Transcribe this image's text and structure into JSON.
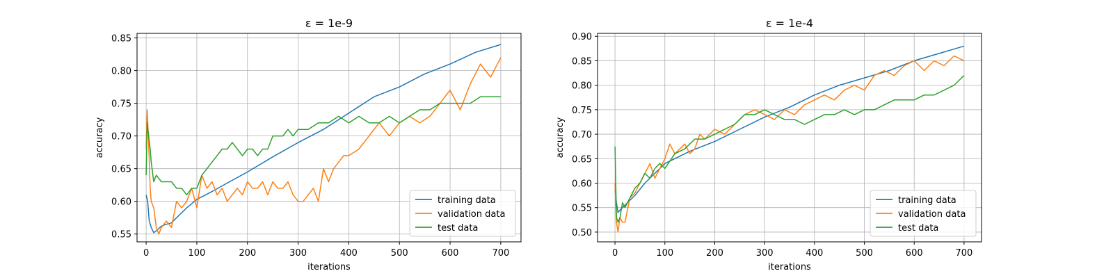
{
  "colors": {
    "training": "#1f77b4",
    "validation": "#ff7f0e",
    "test": "#2ca02c",
    "grid": "#b0b0b0"
  },
  "chart_data": [
    {
      "type": "line",
      "title": "ε = 1e-9",
      "xlabel": "iterations",
      "ylabel": "accuracy",
      "xlim": [
        -18,
        740
      ],
      "ylim": [
        0.538,
        0.857
      ],
      "xticks": [
        0,
        100,
        200,
        300,
        400,
        500,
        600,
        700
      ],
      "yticks": [
        0.55,
        0.6,
        0.65,
        0.7,
        0.75,
        0.8,
        0.85
      ],
      "ytick_labels": [
        "0.55",
        "0.60",
        "0.65",
        "0.70",
        "0.75",
        "0.80",
        "0.85"
      ],
      "grid": true,
      "legend_position": "lower-right",
      "series": [
        {
          "name": "training data",
          "color_key": "training",
          "x": [
            0,
            3,
            6,
            10,
            15,
            20,
            30,
            40,
            50,
            60,
            80,
            100,
            130,
            160,
            200,
            250,
            300,
            350,
            400,
            450,
            500,
            550,
            600,
            650,
            700
          ],
          "y": [
            0.61,
            0.6,
            0.57,
            0.56,
            0.552,
            0.555,
            0.562,
            0.565,
            0.567,
            0.575,
            0.59,
            0.603,
            0.615,
            0.628,
            0.645,
            0.668,
            0.69,
            0.71,
            0.735,
            0.76,
            0.775,
            0.795,
            0.81,
            0.828,
            0.84
          ]
        },
        {
          "name": "validation data",
          "color_key": "validation",
          "x": [
            0,
            2,
            5,
            8,
            10,
            15,
            20,
            25,
            30,
            40,
            50,
            60,
            70,
            80,
            90,
            100,
            110,
            120,
            130,
            140,
            150,
            160,
            170,
            180,
            190,
            200,
            210,
            220,
            230,
            240,
            250,
            260,
            270,
            280,
            290,
            300,
            310,
            320,
            330,
            340,
            350,
            360,
            370,
            380,
            390,
            400,
            420,
            440,
            460,
            480,
            500,
            520,
            540,
            560,
            580,
            600,
            620,
            640,
            660,
            680,
            700
          ],
          "y": [
            0.68,
            0.74,
            0.69,
            0.62,
            0.6,
            0.59,
            0.56,
            0.55,
            0.56,
            0.57,
            0.56,
            0.6,
            0.59,
            0.6,
            0.62,
            0.59,
            0.64,
            0.62,
            0.63,
            0.61,
            0.62,
            0.6,
            0.61,
            0.62,
            0.61,
            0.63,
            0.62,
            0.62,
            0.63,
            0.61,
            0.63,
            0.62,
            0.62,
            0.63,
            0.61,
            0.6,
            0.6,
            0.61,
            0.62,
            0.6,
            0.65,
            0.63,
            0.65,
            0.66,
            0.67,
            0.67,
            0.68,
            0.7,
            0.72,
            0.7,
            0.72,
            0.73,
            0.72,
            0.73,
            0.75,
            0.77,
            0.74,
            0.78,
            0.81,
            0.79,
            0.82
          ]
        },
        {
          "name": "test data",
          "color_key": "test",
          "x": [
            0,
            2,
            5,
            8,
            10,
            15,
            20,
            30,
            40,
            50,
            60,
            70,
            80,
            90,
            100,
            110,
            120,
            130,
            140,
            150,
            160,
            170,
            180,
            190,
            200,
            210,
            220,
            230,
            240,
            250,
            260,
            270,
            280,
            290,
            300,
            320,
            340,
            360,
            380,
            400,
            420,
            440,
            460,
            480,
            500,
            520,
            540,
            560,
            580,
            600,
            620,
            640,
            660,
            680,
            700
          ],
          "y": [
            0.64,
            0.72,
            0.7,
            0.68,
            0.66,
            0.63,
            0.64,
            0.63,
            0.63,
            0.63,
            0.62,
            0.62,
            0.61,
            0.62,
            0.62,
            0.64,
            0.65,
            0.66,
            0.67,
            0.68,
            0.68,
            0.69,
            0.68,
            0.67,
            0.68,
            0.68,
            0.67,
            0.68,
            0.68,
            0.7,
            0.7,
            0.7,
            0.71,
            0.7,
            0.71,
            0.71,
            0.72,
            0.72,
            0.73,
            0.72,
            0.73,
            0.72,
            0.72,
            0.73,
            0.72,
            0.73,
            0.74,
            0.74,
            0.75,
            0.75,
            0.75,
            0.75,
            0.76,
            0.76,
            0.76
          ]
        }
      ]
    },
    {
      "type": "line",
      "title": "ε = 1e-4",
      "xlabel": "iterations",
      "ylabel": "accuracy",
      "xlim": [
        -35,
        735
      ],
      "ylim": [
        0.48,
        0.906
      ],
      "xticks": [
        0,
        100,
        200,
        300,
        400,
        500,
        600,
        700
      ],
      "yticks": [
        0.5,
        0.55,
        0.6,
        0.65,
        0.7,
        0.75,
        0.8,
        0.85,
        0.9
      ],
      "ytick_labels": [
        "0.50",
        "0.55",
        "0.60",
        "0.65",
        "0.70",
        "0.75",
        "0.80",
        "0.85",
        "0.90"
      ],
      "grid": true,
      "legend_position": "lower-right",
      "series": [
        {
          "name": "training data",
          "color_key": "training",
          "x": [
            0,
            3,
            6,
            10,
            20,
            40,
            60,
            100,
            150,
            200,
            250,
            300,
            350,
            400,
            450,
            500,
            550,
            600,
            650,
            700
          ],
          "y": [
            0.585,
            0.56,
            0.54,
            0.545,
            0.555,
            0.575,
            0.6,
            0.64,
            0.665,
            0.685,
            0.71,
            0.735,
            0.755,
            0.78,
            0.8,
            0.815,
            0.83,
            0.85,
            0.865,
            0.88
          ]
        },
        {
          "name": "validation data",
          "color_key": "validation",
          "x": [
            0,
            3,
            6,
            10,
            15,
            20,
            30,
            40,
            50,
            60,
            70,
            80,
            90,
            100,
            110,
            120,
            130,
            140,
            150,
            160,
            170,
            180,
            190,
            200,
            220,
            240,
            260,
            280,
            300,
            320,
            340,
            360,
            380,
            400,
            420,
            440,
            460,
            480,
            500,
            520,
            540,
            560,
            580,
            600,
            620,
            640,
            660,
            680,
            700
          ],
          "y": [
            0.6,
            0.52,
            0.5,
            0.53,
            0.52,
            0.52,
            0.57,
            0.58,
            0.6,
            0.62,
            0.64,
            0.61,
            0.63,
            0.65,
            0.68,
            0.66,
            0.67,
            0.68,
            0.66,
            0.67,
            0.7,
            0.69,
            0.7,
            0.71,
            0.7,
            0.72,
            0.74,
            0.75,
            0.74,
            0.73,
            0.75,
            0.74,
            0.76,
            0.77,
            0.78,
            0.77,
            0.79,
            0.8,
            0.79,
            0.82,
            0.83,
            0.82,
            0.84,
            0.85,
            0.83,
            0.85,
            0.84,
            0.86,
            0.85
          ]
        },
        {
          "name": "test data",
          "color_key": "test",
          "x": [
            0,
            3,
            6,
            10,
            15,
            20,
            30,
            40,
            50,
            60,
            70,
            80,
            90,
            100,
            120,
            140,
            160,
            180,
            200,
            220,
            240,
            260,
            280,
            300,
            320,
            340,
            360,
            380,
            400,
            420,
            440,
            460,
            480,
            500,
            520,
            540,
            560,
            580,
            600,
            620,
            640,
            660,
            680,
            700
          ],
          "y": [
            0.675,
            0.53,
            0.52,
            0.53,
            0.56,
            0.55,
            0.57,
            0.59,
            0.6,
            0.62,
            0.61,
            0.63,
            0.64,
            0.63,
            0.66,
            0.67,
            0.69,
            0.69,
            0.7,
            0.71,
            0.72,
            0.74,
            0.74,
            0.75,
            0.74,
            0.73,
            0.73,
            0.72,
            0.73,
            0.74,
            0.74,
            0.75,
            0.74,
            0.75,
            0.75,
            0.76,
            0.77,
            0.77,
            0.77,
            0.78,
            0.78,
            0.79,
            0.8,
            0.82
          ]
        }
      ]
    }
  ]
}
